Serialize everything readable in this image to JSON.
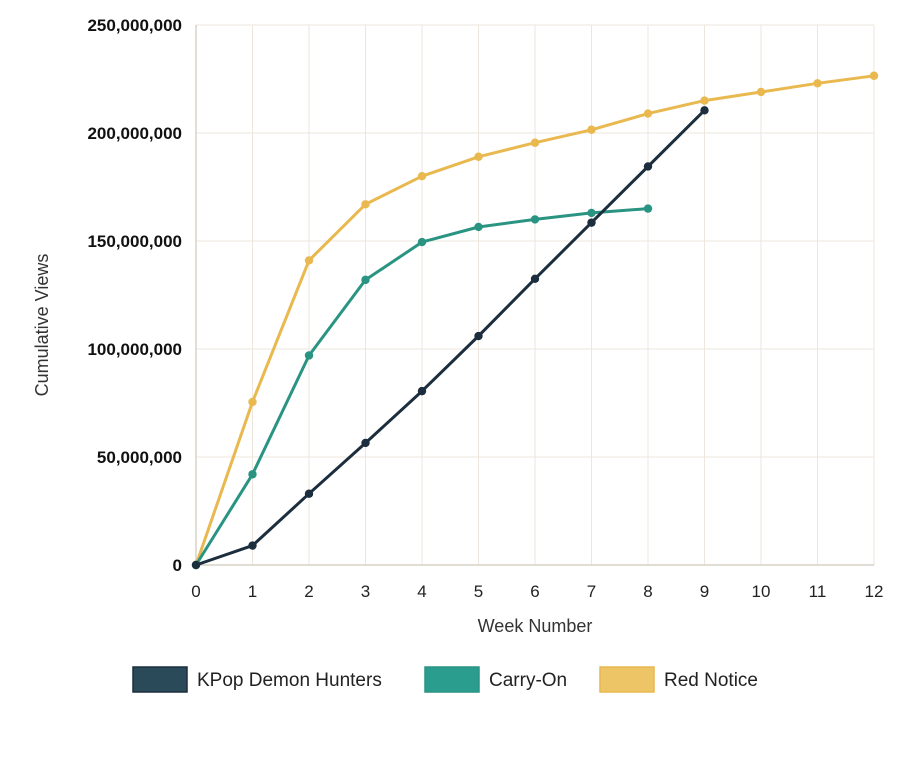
{
  "chart_data": {
    "type": "line",
    "xlabel": "Week Number",
    "ylabel": "Cumulative Views",
    "x_ticks": [
      "0",
      "1",
      "2",
      "3",
      "4",
      "5",
      "6",
      "7",
      "8",
      "9",
      "10",
      "11",
      "12"
    ],
    "y_ticks": [
      "0",
      "50,000,000",
      "100,000,000",
      "150,000,000",
      "200,000,000",
      "250,000,000"
    ],
    "xlim": [
      0,
      12
    ],
    "ylim": [
      0,
      250000000
    ],
    "grid": true,
    "legend_position": "bottom",
    "series": [
      {
        "name": "KPop Demon Hunters",
        "color": "#1c2e3d",
        "legend_color": "#2a4a5a",
        "x": [
          0,
          1,
          2,
          3,
          4,
          5,
          6,
          7,
          8,
          9
        ],
        "values": [
          0,
          9000000,
          33000000,
          56500000,
          80500000,
          106000000,
          132500000,
          158500000,
          184500000,
          210500000
        ]
      },
      {
        "name": "Carry-On",
        "color": "#2a9483",
        "legend_color": "#2a9d8f",
        "x": [
          0,
          1,
          2,
          3,
          4,
          5,
          6,
          7,
          8
        ],
        "values": [
          0,
          42000000,
          97000000,
          132000000,
          149500000,
          156500000,
          160000000,
          163000000,
          165000000
        ]
      },
      {
        "name": "Red Notice",
        "color": "#e9b84f",
        "legend_color": "#edc567",
        "x": [
          0,
          1,
          2,
          3,
          4,
          5,
          6,
          7,
          8,
          9,
          10,
          11,
          12
        ],
        "values": [
          0,
          75500000,
          141000000,
          167000000,
          180000000,
          189000000,
          195500000,
          201500000,
          209000000,
          215000000,
          219000000,
          223000000,
          226500000
        ]
      }
    ]
  }
}
